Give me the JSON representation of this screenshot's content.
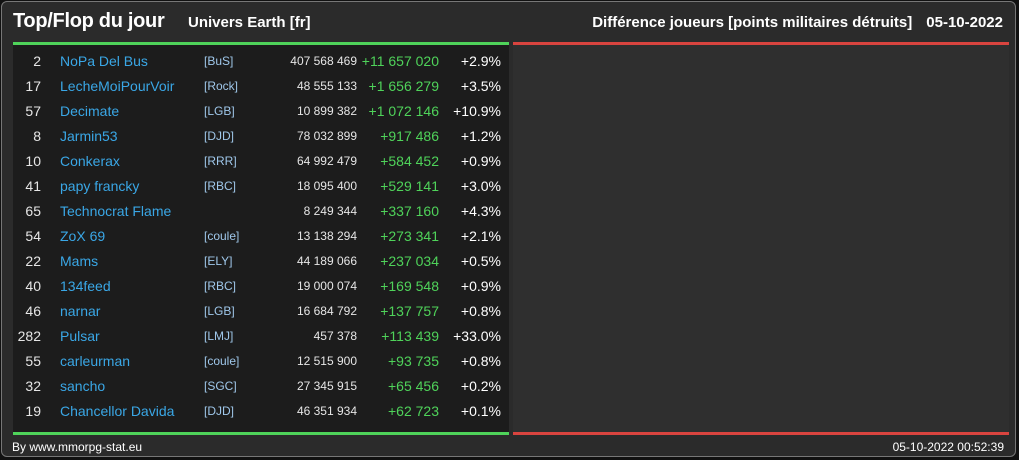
{
  "header": {
    "title": "Top/Flop du jour",
    "subtitle": "Univers Earth [fr]",
    "metric": "Différence joueurs [points militaires détruits]",
    "date": "05-10-2022"
  },
  "colors": {
    "background": "#2b2b2b",
    "panel_left": "#1c1c1c",
    "panel_right": "#2f2f2f",
    "top_line": "#4fd35a",
    "flop_line": "#d9443f",
    "player_link": "#3aa7e6",
    "gain": "#4fd35a"
  },
  "top": [
    {
      "rank": "2",
      "name": "NoPa Del Bus",
      "alliance": "[BuS]",
      "points": "407 568 469",
      "diff": "+11 657 020",
      "pct": "+2.9%"
    },
    {
      "rank": "17",
      "name": "LecheMoiPourVoir",
      "alliance": "[Rock]",
      "points": "48 555 133",
      "diff": "+1 656 279",
      "pct": "+3.5%"
    },
    {
      "rank": "57",
      "name": "Decimate",
      "alliance": "[LGB]",
      "points": "10 899 382",
      "diff": "+1 072 146",
      "pct": "+10.9%"
    },
    {
      "rank": "8",
      "name": "Jarmin53",
      "alliance": "[DJD]",
      "points": "78 032 899",
      "diff": "+917 486",
      "pct": "+1.2%"
    },
    {
      "rank": "10",
      "name": "Conkerax",
      "alliance": "[RRR]",
      "points": "64 992 479",
      "diff": "+584 452",
      "pct": "+0.9%"
    },
    {
      "rank": "41",
      "name": "papy francky",
      "alliance": "[RBC]",
      "points": "18 095 400",
      "diff": "+529 141",
      "pct": "+3.0%"
    },
    {
      "rank": "65",
      "name": "Technocrat Flame",
      "alliance": "",
      "points": "8 249 344",
      "diff": "+337 160",
      "pct": "+4.3%"
    },
    {
      "rank": "54",
      "name": "ZoX 69",
      "alliance": "[coule]",
      "points": "13 138 294",
      "diff": "+273 341",
      "pct": "+2.1%"
    },
    {
      "rank": "22",
      "name": "Mams",
      "alliance": "[ELY]",
      "points": "44 189 066",
      "diff": "+237 034",
      "pct": "+0.5%"
    },
    {
      "rank": "40",
      "name": "134feed",
      "alliance": "[RBC]",
      "points": "19 000 074",
      "diff": "+169 548",
      "pct": "+0.9%"
    },
    {
      "rank": "46",
      "name": "narnar",
      "alliance": "[LGB]",
      "points": "16 684 792",
      "diff": "+137 757",
      "pct": "+0.8%"
    },
    {
      "rank": "282",
      "name": "Pulsar",
      "alliance": "[LMJ]",
      "points": "457 378",
      "diff": "+113 439",
      "pct": "+33.0%"
    },
    {
      "rank": "55",
      "name": "carleurman",
      "alliance": "[coule]",
      "points": "12 515 900",
      "diff": "+93 735",
      "pct": "+0.8%"
    },
    {
      "rank": "32",
      "name": "sancho",
      "alliance": "[SGC]",
      "points": "27 345 915",
      "diff": "+65 456",
      "pct": "+0.2%"
    },
    {
      "rank": "19",
      "name": "Chancellor Davida",
      "alliance": "[DJD]",
      "points": "46 351 934",
      "diff": "+62 723",
      "pct": "+0.1%"
    }
  ],
  "footer": {
    "credit": "By www.mmorpg-stat.eu",
    "timestamp": "05-10-2022 00:52:39"
  }
}
